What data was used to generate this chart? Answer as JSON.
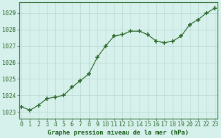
{
  "x": [
    0,
    1,
    2,
    3,
    4,
    5,
    6,
    7,
    8,
    9,
    10,
    11,
    12,
    13,
    14,
    15,
    16,
    17,
    18,
    19,
    20,
    21,
    22,
    23
  ],
  "y": [
    1023.3,
    1023.1,
    1023.4,
    1023.8,
    1023.9,
    1024.0,
    1024.5,
    1024.9,
    1025.3,
    1026.3,
    1027.0,
    1027.6,
    1027.7,
    1027.9,
    1027.9,
    1027.7,
    1027.3,
    1027.2,
    1027.3,
    1027.6,
    1028.3,
    1028.6,
    1029.0,
    1029.3
  ],
  "line_color": "#2d6a2d",
  "marker": "+",
  "marker_size": 4,
  "marker_lw": 1.2,
  "bg_color": "#d6f0ec",
  "grid_color": "#b8d8d0",
  "ylabel_ticks": [
    1023,
    1024,
    1025,
    1026,
    1027,
    1028,
    1029
  ],
  "xlabel": "Graphe pression niveau de la mer (hPa)",
  "xlim": [
    -0.3,
    23.3
  ],
  "ylim": [
    1022.6,
    1029.65
  ],
  "xlabel_fontsize": 6.5,
  "tick_fontsize": 6.0,
  "tick_color": "#2d6a2d",
  "label_color": "#1a5c1a",
  "spine_color": "#2d6a2d",
  "linewidth": 0.9
}
